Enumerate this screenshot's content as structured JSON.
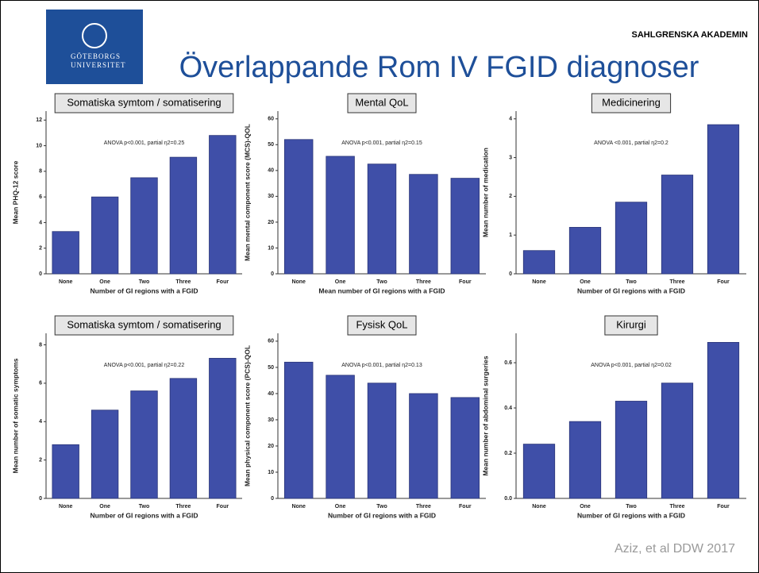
{
  "header": {
    "logo": "GÖTEBORGS UNIVERSITET",
    "institution": "SAHLGRENSKA AKADEMIN",
    "title": "Överlappande Rom IV FGID diagnoser",
    "footer": "Aziz, et al DDW 2017"
  },
  "chart_data": [
    {
      "type": "bar",
      "title": "Somatiska symtom / somatisering",
      "annotation": "ANOVA p<0.001, partial η2=0.25",
      "x_label": "Number of GI regions with a FGID",
      "y_label": "Mean PHQ-12 score",
      "categories": [
        "None",
        "One",
        "Two",
        "Three",
        "Four"
      ],
      "values": [
        3.3,
        6.0,
        7.5,
        9.1,
        10.8
      ],
      "color": "#3f4fa8",
      "ylim": [
        0,
        12.7
      ],
      "yticks": [
        0,
        2,
        4,
        6,
        8,
        10,
        12
      ]
    },
    {
      "type": "bar",
      "title": "Mental QoL",
      "annotation": "ANOVA p<0.001, partial η2=0.15",
      "x_label": "Mean number of GI regions with a FGID",
      "y_label": "Mean mental component score (MCS)-QOL",
      "categories": [
        "None",
        "One",
        "Two",
        "Three",
        "Four"
      ],
      "values": [
        52,
        45.5,
        42.5,
        38.5,
        37
      ],
      "color": "#3f4fa8",
      "ylim": [
        0,
        63
      ],
      "yticks": [
        0,
        10,
        20,
        30,
        40,
        50,
        60
      ]
    },
    {
      "type": "bar",
      "title": "Medicinering",
      "annotation": "ANOVA <0.001, partial η2=0.2",
      "x_label": "Number of GI regions with a FGID",
      "y_label": "Mean number of medication",
      "categories": [
        "None",
        "One",
        "Two",
        "Three",
        "Four"
      ],
      "values": [
        0.6,
        1.2,
        1.85,
        2.55,
        3.85
      ],
      "color": "#3f4fa8",
      "ylim": [
        0,
        4.2
      ],
      "yticks": [
        0,
        1,
        2,
        3,
        4
      ]
    },
    {
      "type": "bar",
      "title": "Somatiska symtom / somatisering",
      "annotation": "ANOVA p<0.001, partial η2=0.22",
      "x_label": "Number of GI regions with a FGID",
      "y_label": "Mean number of somatic symptoms",
      "categories": [
        "None",
        "One",
        "Two",
        "Three",
        "Four"
      ],
      "values": [
        2.8,
        4.6,
        5.6,
        6.25,
        7.3
      ],
      "color": "#3f4fa8",
      "ylim": [
        0,
        8.6
      ],
      "yticks": [
        0,
        2,
        4,
        6,
        8
      ]
    },
    {
      "type": "bar",
      "title": "Fysisk QoL",
      "annotation": "ANOVA p<0.001, partial η2=0.13",
      "x_label": "Number of GI regions with a FGID",
      "y_label": "Mean physical component score (PCS)-QOL",
      "categories": [
        "None",
        "One",
        "Two",
        "Three",
        "Four"
      ],
      "values": [
        52,
        47,
        44,
        40,
        38.5
      ],
      "color": "#3f4fa8",
      "ylim": [
        0,
        63
      ],
      "yticks": [
        0,
        10,
        20,
        30,
        40,
        50,
        60
      ]
    },
    {
      "type": "bar",
      "title": "Kirurgi",
      "annotation": "ANOVA p<0.001, partial η2=0.02",
      "x_label": "Number of GI regions with a FGID",
      "y_label": "Mean number of abdominal surgeries",
      "categories": [
        "None",
        "One",
        "Two",
        "Three",
        "Four"
      ],
      "values": [
        0.24,
        0.34,
        0.43,
        0.51,
        0.69
      ],
      "color": "#3f4fa8",
      "ylim": [
        0,
        0.73
      ],
      "yticks": [
        {
          "value": 0,
          "label": "0.0"
        },
        0.2,
        0.4,
        0.6
      ]
    }
  ]
}
